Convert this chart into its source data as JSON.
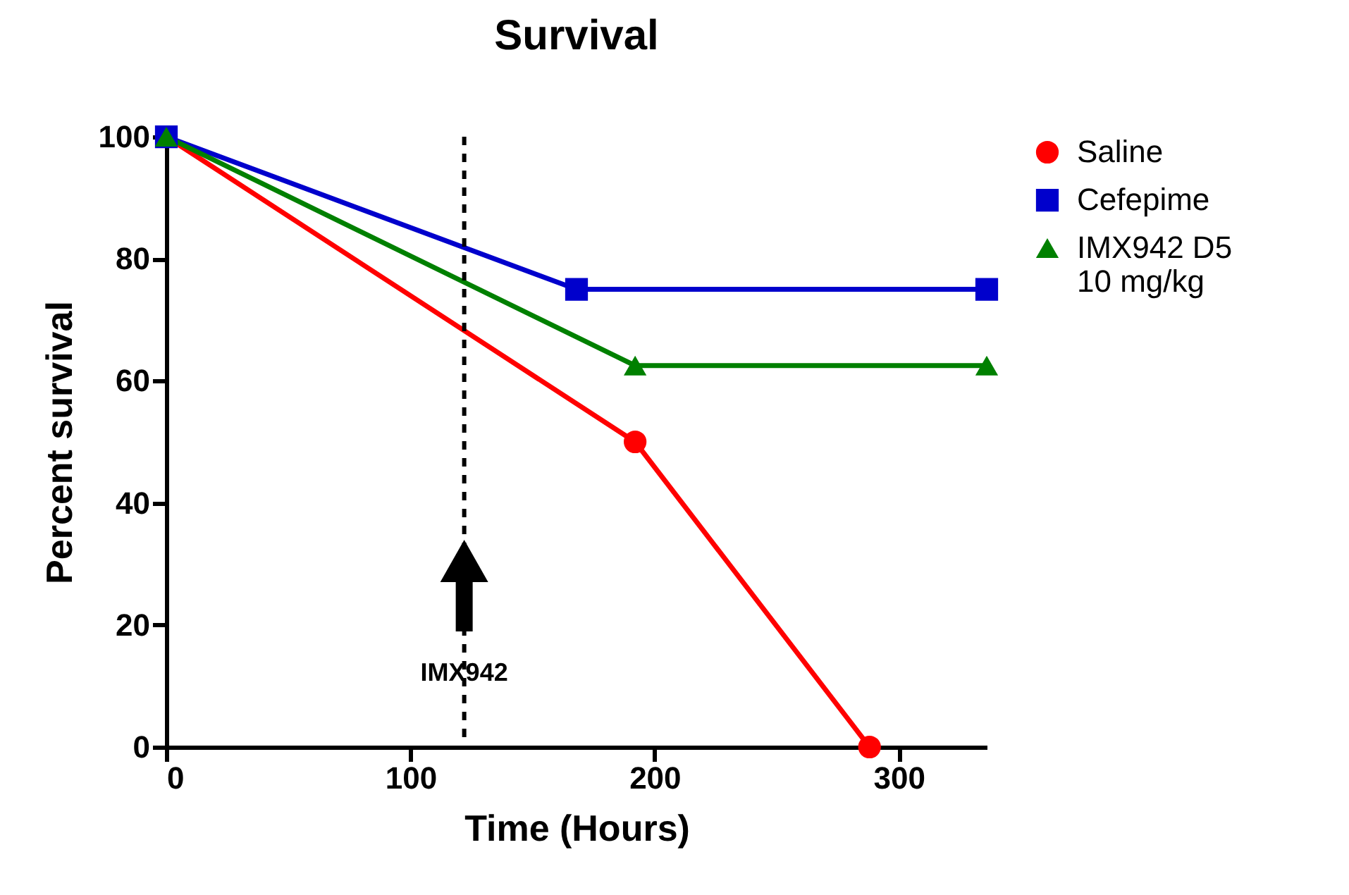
{
  "chart_data": {
    "type": "line",
    "title": "Survival",
    "xlabel": "Time (Hours)",
    "ylabel": "Percent survival",
    "xlim": [
      0,
      336
    ],
    "xticks": [
      0,
      100,
      200,
      300
    ],
    "ylim": [
      0,
      100
    ],
    "yticks": [
      0,
      20,
      40,
      60,
      80,
      100
    ],
    "legend": "top right",
    "grid": false,
    "series": [
      {
        "name": "Saline",
        "color": "#ff0000",
        "marker": "circle",
        "x": [
          0,
          192,
          288
        ],
        "values": [
          100,
          50,
          0
        ]
      },
      {
        "name": "Cefepime",
        "color": "#0000cc",
        "marker": "square",
        "x": [
          0,
          168,
          336
        ],
        "values": [
          100,
          75,
          75
        ]
      },
      {
        "name": "IMX942 D5\n10 mg/kg",
        "color": "#008000",
        "marker": "triangle",
        "x": [
          0,
          192,
          336
        ],
        "values": [
          100,
          62.5,
          62.5
        ]
      }
    ],
    "ref_lines": [
      {
        "axis": "x",
        "value": 122,
        "line_style": "dashed",
        "color": "#000000"
      }
    ],
    "annotations": [
      {
        "text": "IMX942",
        "x": 122,
        "y": 12
      }
    ]
  }
}
